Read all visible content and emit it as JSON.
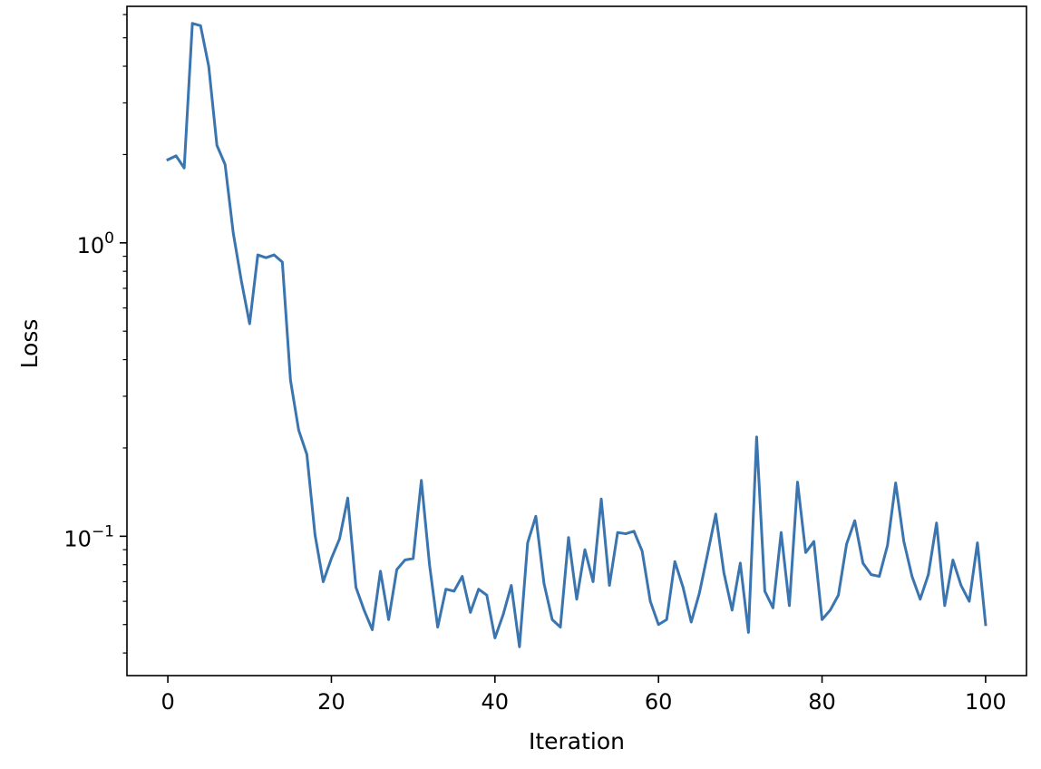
{
  "chart_data": {
    "type": "line",
    "xlabel": "Iteration",
    "ylabel": "Loss",
    "yscale": "log",
    "xlim": [
      -5,
      105
    ],
    "ylim": [
      0.0335,
      6.4
    ],
    "grid": false,
    "x_ticks": [
      {
        "value": 0,
        "label": "0"
      },
      {
        "value": 20,
        "label": "20"
      },
      {
        "value": 40,
        "label": "40"
      },
      {
        "value": 60,
        "label": "60"
      },
      {
        "value": 80,
        "label": "80"
      },
      {
        "value": 100,
        "label": "100"
      }
    ],
    "y_ticks": [
      {
        "value": 1,
        "base": "10",
        "exp": "0"
      },
      {
        "value": 0.1,
        "base": "10",
        "exp": "−1"
      }
    ],
    "series": [
      {
        "color": "#3a75af",
        "x": [
          0,
          1,
          2,
          3,
          4,
          5,
          6,
          7,
          8,
          9,
          10,
          11,
          12,
          13,
          14,
          15,
          16,
          17,
          18,
          19,
          20,
          21,
          22,
          23,
          24,
          25,
          26,
          27,
          28,
          29,
          30,
          31,
          32,
          33,
          34,
          35,
          36,
          37,
          38,
          39,
          40,
          41,
          42,
          43,
          44,
          45,
          46,
          47,
          48,
          49,
          50,
          51,
          52,
          53,
          54,
          55,
          56,
          57,
          58,
          59,
          60,
          61,
          62,
          63,
          64,
          65,
          66,
          67,
          68,
          69,
          70,
          71,
          72,
          73,
          74,
          75,
          76,
          77,
          78,
          79,
          80,
          81,
          82,
          83,
          84,
          85,
          86,
          87,
          88,
          89,
          90,
          91,
          92,
          93,
          94,
          95,
          96,
          97,
          98,
          99,
          100
        ],
        "values": [
          1.92,
          1.98,
          1.8,
          5.6,
          5.5,
          4.0,
          2.15,
          1.85,
          1.08,
          0.74,
          0.53,
          0.91,
          0.89,
          0.91,
          0.86,
          0.34,
          0.23,
          0.19,
          0.101,
          0.07,
          0.084,
          0.098,
          0.135,
          0.067,
          0.056,
          0.048,
          0.076,
          0.052,
          0.077,
          0.083,
          0.084,
          0.155,
          0.08,
          0.049,
          0.066,
          0.065,
          0.073,
          0.055,
          0.066,
          0.063,
          0.045,
          0.054,
          0.068,
          0.042,
          0.095,
          0.117,
          0.069,
          0.052,
          0.049,
          0.099,
          0.061,
          0.09,
          0.07,
          0.134,
          0.068,
          0.103,
          0.102,
          0.104,
          0.089,
          0.06,
          0.05,
          0.052,
          0.082,
          0.067,
          0.051,
          0.064,
          0.087,
          0.119,
          0.075,
          0.056,
          0.081,
          0.047,
          0.218,
          0.065,
          0.057,
          0.103,
          0.058,
          0.153,
          0.088,
          0.096,
          0.052,
          0.056,
          0.063,
          0.094,
          0.113,
          0.081,
          0.074,
          0.073,
          0.093,
          0.152,
          0.096,
          0.073,
          0.061,
          0.074,
          0.111,
          0.058,
          0.083,
          0.068,
          0.06,
          0.095,
          0.05
        ]
      }
    ]
  }
}
